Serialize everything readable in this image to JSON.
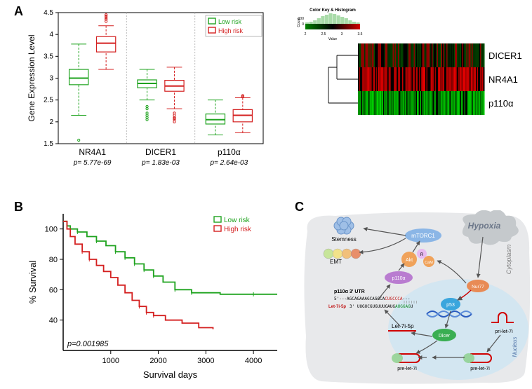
{
  "panelA": {
    "label": "A",
    "ylabel": "Gene Expression Level",
    "legend": {
      "low": "Low risk",
      "high": "High risk"
    },
    "colors": {
      "low": "#1fa31f",
      "high": "#d42020"
    },
    "axis_color": "#000000",
    "grid_color": "#dddddd",
    "divider_color": "#bbbbbb",
    "ylim": [
      1.5,
      4.5
    ],
    "yticks": [
      1.5,
      2,
      2.5,
      3,
      3.5,
      4,
      4.5
    ],
    "box_width": 0.55,
    "groups": [
      {
        "name": "NR4A1",
        "p": "p= 5.77e-69",
        "low": {
          "min": 2.15,
          "q1": 2.85,
          "med": 3.0,
          "q3": 3.2,
          "max": 3.78,
          "outliers": [
            1.58
          ]
        },
        "high": {
          "min": 3.2,
          "q1": 3.6,
          "med": 3.8,
          "q3": 3.95,
          "max": 4.2,
          "outliers": [
            4.35,
            4.38,
            4.42,
            4.45,
            4.3
          ]
        }
      },
      {
        "name": "DICER1",
        "p": "p= 1.83e-03",
        "low": {
          "min": 2.5,
          "q1": 2.78,
          "med": 2.88,
          "q3": 2.96,
          "max": 3.2,
          "outliers": [
            2.3,
            2.35,
            2.05,
            2.1,
            2.15,
            2.2
          ]
        },
        "high": {
          "min": 2.3,
          "q1": 2.7,
          "med": 2.82,
          "q3": 2.95,
          "max": 3.25,
          "outliers": [
            2.05,
            2.08,
            2.1,
            2.0,
            2.15,
            2.2
          ]
        }
      },
      {
        "name": "p110α",
        "p": "p= 2.64e-03",
        "low": {
          "min": 1.7,
          "q1": 1.95,
          "med": 2.05,
          "q3": 2.18,
          "max": 2.5,
          "outliers": []
        },
        "high": {
          "min": 1.75,
          "q1": 2.0,
          "med": 2.15,
          "q3": 2.28,
          "max": 2.55,
          "outliers": [
            2.58,
            2.6
          ]
        }
      }
    ],
    "heatmap": {
      "title": "Color Key & Histogram",
      "ylab": "Count",
      "ticks": [
        "2",
        "2.5",
        "3",
        "3.5"
      ],
      "tick_label": "Value",
      "rows": [
        {
          "label": "DICER1",
          "hue": 36
        },
        {
          "label": "NR4A1",
          "hue": 0
        },
        {
          "label": "p110α",
          "hue": 120
        }
      ],
      "row_label_fontsize": 13,
      "ncols": 120
    }
  },
  "panelB": {
    "label": "B",
    "xlabel": "Survival days",
    "ylabel": "% Survival",
    "p_text": "p=0.001985",
    "colors": {
      "low": "#1fa31f",
      "high": "#d42020"
    },
    "legend": {
      "low": "Low risk",
      "high": "High risk"
    },
    "axis_color": "#000000",
    "xlim": [
      0,
      4500
    ],
    "xticks": [
      1000,
      2000,
      3000,
      4000
    ],
    "ylim": [
      20,
      110
    ],
    "yticks": [
      40,
      60,
      80,
      100
    ],
    "line_width": 1.8,
    "tick_fontsize": 11,
    "label_fontsize": 13,
    "low_curve": [
      [
        0,
        105
      ],
      [
        80,
        102
      ],
      [
        150,
        100
      ],
      [
        300,
        98
      ],
      [
        500,
        95
      ],
      [
        700,
        92
      ],
      [
        900,
        89
      ],
      [
        1100,
        85
      ],
      [
        1300,
        81
      ],
      [
        1500,
        77
      ],
      [
        1700,
        73
      ],
      [
        1900,
        69
      ],
      [
        2100,
        65
      ],
      [
        2350,
        60
      ],
      [
        2700,
        58
      ],
      [
        3300,
        57
      ],
      [
        4000,
        57
      ],
      [
        4500,
        57
      ]
    ],
    "high_curve": [
      [
        0,
        105
      ],
      [
        80,
        100
      ],
      [
        150,
        95
      ],
      [
        250,
        90
      ],
      [
        400,
        85
      ],
      [
        550,
        80
      ],
      [
        700,
        76
      ],
      [
        850,
        72
      ],
      [
        1000,
        68
      ],
      [
        1150,
        63
      ],
      [
        1300,
        58
      ],
      [
        1450,
        53
      ],
      [
        1600,
        49
      ],
      [
        1750,
        45
      ],
      [
        1900,
        43
      ],
      [
        2150,
        40
      ],
      [
        2500,
        38
      ],
      [
        2850,
        35
      ],
      [
        3150,
        34
      ]
    ]
  },
  "panelC": {
    "label": "C",
    "colors": {
      "cytoplasm": "#e8e9eb",
      "nucleus": "#cfe5f2",
      "hypoxia_fill": "#c5c9cc",
      "hypoxia_text": "#6d788a",
      "mtorc1": "#8bb6e6",
      "p110a_fill": "#b97cd0",
      "p110a_text": "#ffffff",
      "akt_fill": "#f0a25a",
      "p53_fill": "#3aa6dd",
      "nur77_fill": "#e88b56",
      "dicer_fill": "#3aae52",
      "seq_green": "#0b8a1e",
      "seq_red": "#c01414",
      "let7_red": "#d00000",
      "arrow": "#555555",
      "emT_colors": [
        "#c7e59a",
        "#f2e38a",
        "#f2c07a",
        "#e88e6a"
      ]
    },
    "texts": {
      "hypoxia": "Hypoxia",
      "cytoplasm": "Cytoplasm",
      "nucleus": "Nucleus",
      "stemness": "Stemness",
      "emt": "EMT",
      "mtorc1": "mTORC1",
      "akt": "Akt",
      "r": "R",
      "cam": "CaM",
      "p110a": "p110α",
      "p53": "p53",
      "nur77": "Nur77",
      "dicer": "Dicer",
      "let7i5p": "Let-7i-5p",
      "p110_utr": "p110α 3' UTR",
      "let7_label": "Let-7i-5p",
      "seq_black": "5'---AGCAGAAAGCAGGCA",
      "seq_red": "CUGCCCA",
      "seq_tail": "---",
      "seq2_sp": "3' UUGUCGUGUUUGAUG",
      "seq2_green": "AUGGAG",
      "seq2_u": "U",
      "pre_let7i": "pre-let-7i",
      "pri_let7i": "pri-let-7i"
    }
  }
}
